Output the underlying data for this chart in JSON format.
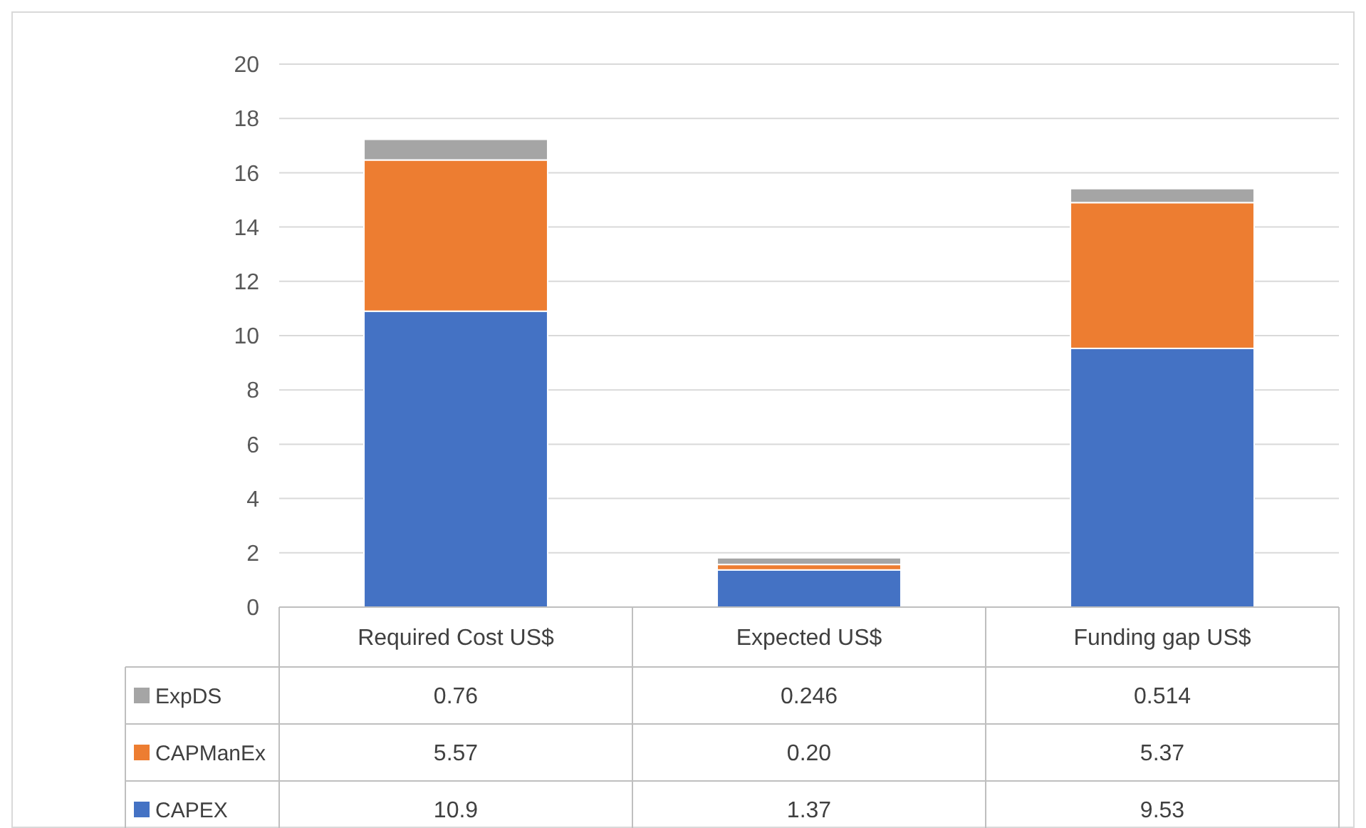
{
  "chart_data": {
    "type": "bar",
    "stacked": true,
    "categories": [
      "Required Cost US$",
      "Expected US$",
      "Funding gap US$"
    ],
    "series": [
      {
        "name": "CAPEX",
        "color": "#4472c4",
        "values": [
          10.9,
          1.37,
          9.53
        ],
        "value_labels": [
          "10.9",
          "1.37",
          "9.53"
        ]
      },
      {
        "name": "CAPManEx",
        "color": "#ed7d31",
        "values": [
          5.57,
          0.2,
          5.37
        ],
        "value_labels": [
          "5.57",
          "0.20",
          "5.37"
        ]
      },
      {
        "name": "ExpDS",
        "color": "#a5a5a5",
        "values": [
          0.76,
          0.246,
          0.514
        ],
        "value_labels": [
          "0.76",
          "0.246",
          "0.514"
        ]
      }
    ],
    "ylim": [
      0,
      20
    ],
    "yticks": [
      0,
      2,
      4,
      6,
      8,
      10,
      12,
      14,
      16,
      18,
      20
    ],
    "grid": "y",
    "legend": "bottom"
  }
}
